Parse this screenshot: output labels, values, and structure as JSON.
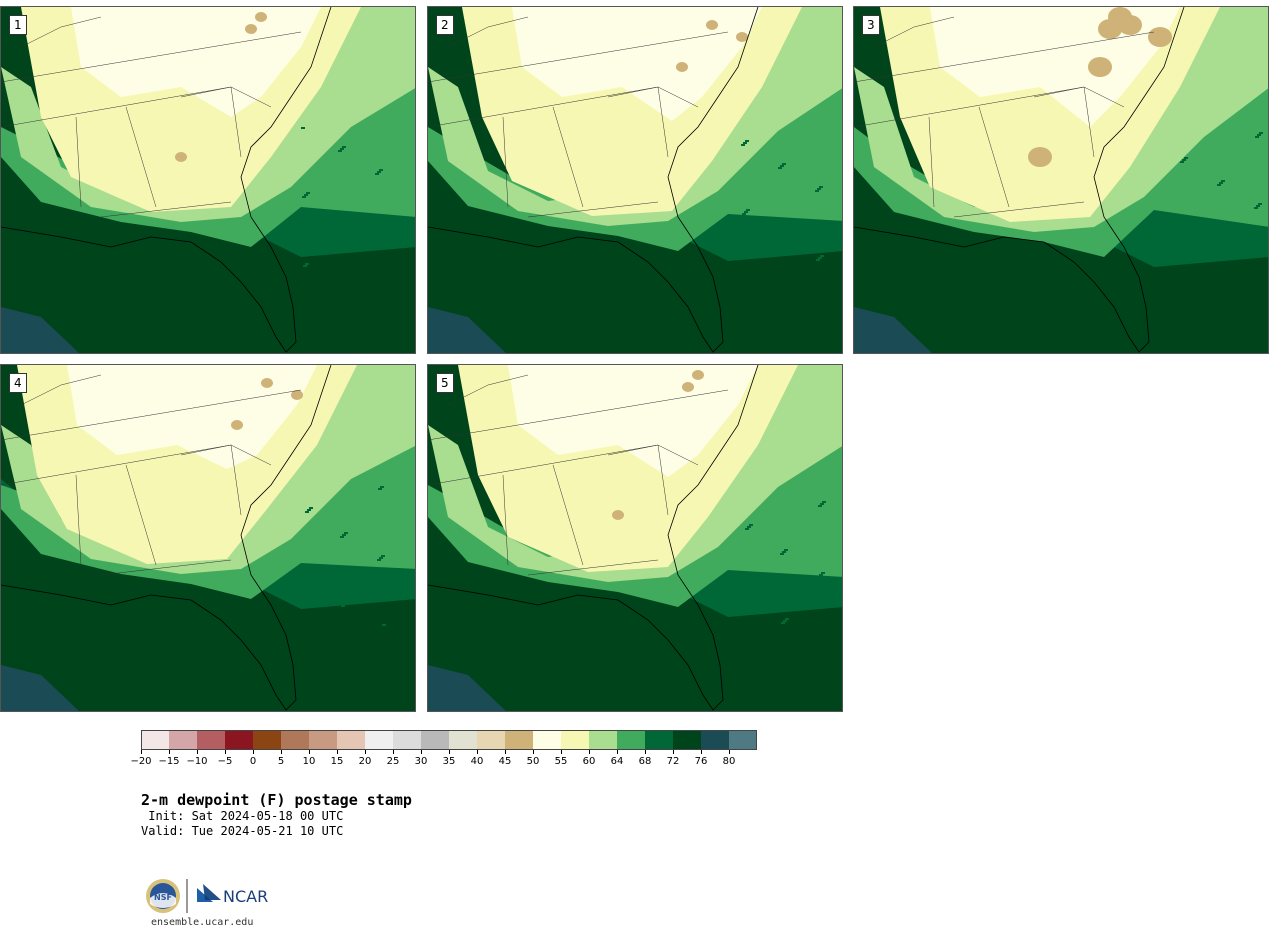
{
  "panels": [
    {
      "label": "1",
      "variant": 0
    },
    {
      "label": "2",
      "variant": 1
    },
    {
      "label": "3",
      "variant": 2
    },
    {
      "label": "4",
      "variant": 3
    },
    {
      "label": "5",
      "variant": 4
    }
  ],
  "colorbar": {
    "colors": [
      "#f3e6e6",
      "#d4a6a8",
      "#b45e62",
      "#8b1520",
      "#8b4513",
      "#b0785a",
      "#c89a82",
      "#e5c6b4",
      "#f0f0f0",
      "#dcdcdc",
      "#b9b9b9",
      "#e2e2d2",
      "#e6d6b2",
      "#cfb277",
      "#fefee6",
      "#f7f7b4",
      "#a9dd8f",
      "#41ab5d",
      "#006837",
      "#00441b",
      "#1b4b55",
      "#4f7a83"
    ],
    "tick_labels": [
      "−20",
      "−15",
      "−10",
      "−5",
      "0",
      "5",
      "10",
      "15",
      "20",
      "25",
      "30",
      "35",
      "40",
      "45",
      "50",
      "55",
      "60",
      "64",
      "68",
      "72",
      "76",
      "80"
    ]
  },
  "title": "2-m dewpoint (F) postage stamp",
  "init": " Init: Sat 2024-05-18 00 UTC",
  "valid": "Valid: Tue 2024-05-21 10 UTC",
  "logos": {
    "nsf": "NSF",
    "ncar": "NCAR"
  },
  "site": "ensemble.ucar.edu"
}
